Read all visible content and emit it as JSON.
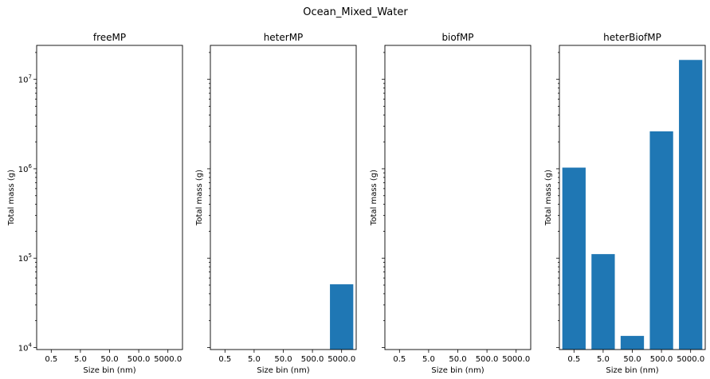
{
  "figure": {
    "title": "Ocean_Mixed_Water"
  },
  "chart_data": [
    {
      "type": "bar",
      "title": "freeMP",
      "xlabel": "Size bin (nm)",
      "ylabel": "Total mass (g)",
      "yscale": "log",
      "ylim": [
        9500,
        24000000
      ],
      "yticks": [
        "10^4",
        "10^5",
        "10^6",
        "10^7"
      ],
      "categories": [
        "0.5",
        "5.0",
        "50.0",
        "500.0",
        "5000.0"
      ],
      "values": [
        null,
        null,
        null,
        null,
        null
      ],
      "bar_color": "#1f77b4"
    },
    {
      "type": "bar",
      "title": "heterMP",
      "xlabel": "Size bin (nm)",
      "ylabel": "Total mass (g)",
      "yscale": "log",
      "ylim": [
        9500,
        24000000
      ],
      "categories": [
        "0.5",
        "5.0",
        "50.0",
        "500.0",
        "5000.0"
      ],
      "values": [
        null,
        null,
        null,
        null,
        51000
      ],
      "bar_color": "#1f77b4"
    },
    {
      "type": "bar",
      "title": "biofMP",
      "xlabel": "Size bin (nm)",
      "ylabel": "Total mass (g)",
      "yscale": "log",
      "ylim": [
        9500,
        24000000
      ],
      "categories": [
        "0.5",
        "5.0",
        "50.0",
        "500.0",
        "5000.0"
      ],
      "values": [
        null,
        null,
        null,
        null,
        null
      ],
      "bar_color": "#1f77b4"
    },
    {
      "type": "bar",
      "title": "heterBiofMP",
      "xlabel": "Size bin (nm)",
      "ylabel": "Total mass (g)",
      "yscale": "log",
      "ylim": [
        9500,
        24000000
      ],
      "categories": [
        "0.5",
        "5.0",
        "50.0",
        "500.0",
        "5000.0"
      ],
      "values": [
        1030000,
        111000,
        13500,
        2620000,
        16500000
      ],
      "bar_color": "#1f77b4"
    }
  ]
}
